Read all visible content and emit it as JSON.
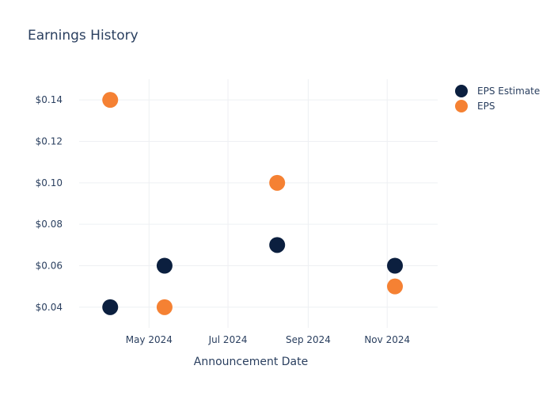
{
  "chart_data": {
    "type": "scatter",
    "title": "Earnings History",
    "xlabel": "Announcement Date",
    "ylabel": "",
    "x_ticks": [
      "May 2024",
      "Jul 2024",
      "Sep 2024",
      "Nov 2024"
    ],
    "y_ticks": [
      "$0.04",
      "$0.06",
      "$0.08",
      "$0.10",
      "$0.12",
      "$0.14"
    ],
    "xlim": [
      "2024-03-08",
      "2024-12-10"
    ],
    "ylim": [
      0.03,
      0.15
    ],
    "grid": true,
    "legend_position": "top-right",
    "series": [
      {
        "name": "EPS Estimate",
        "color": "#0b1f3f",
        "points": [
          {
            "x": "2024-04-01",
            "y": 0.04
          },
          {
            "x": "2024-05-13",
            "y": 0.06
          },
          {
            "x": "2024-08-08",
            "y": 0.07
          },
          {
            "x": "2024-11-07",
            "y": 0.06
          }
        ]
      },
      {
        "name": "EPS",
        "color": "#f58133",
        "points": [
          {
            "x": "2024-04-01",
            "y": 0.14
          },
          {
            "x": "2024-05-13",
            "y": 0.04
          },
          {
            "x": "2024-08-08",
            "y": 0.1
          },
          {
            "x": "2024-11-07",
            "y": 0.05
          }
        ]
      }
    ]
  }
}
